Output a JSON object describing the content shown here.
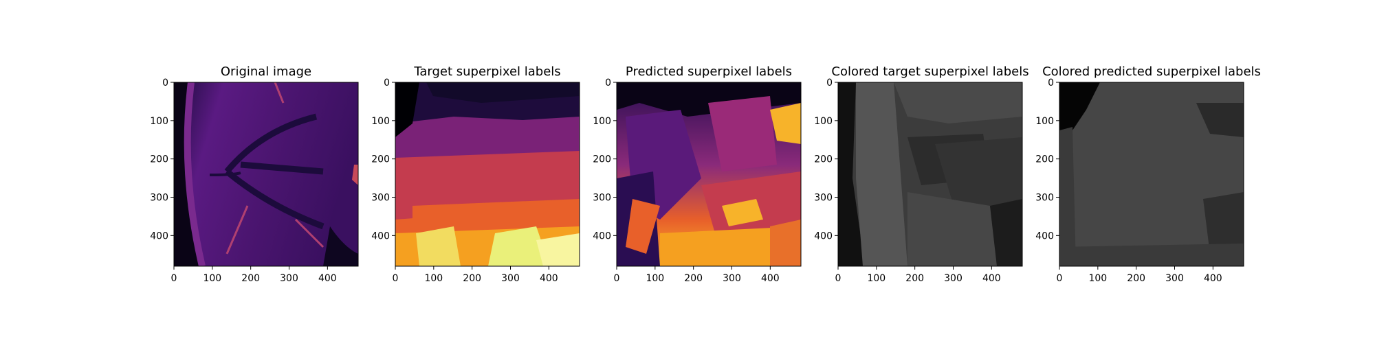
{
  "chart_data": [
    {
      "type": "heatmap",
      "title": "Original image",
      "colormap": "inferno",
      "xlim": [
        0,
        480
      ],
      "ylim": [
        480,
        0
      ],
      "xticks": [
        0,
        100,
        200,
        300,
        400
      ],
      "yticks": [
        0,
        100,
        200,
        300,
        400
      ],
      "xticklabels": [
        "0",
        "100",
        "200",
        "300",
        "400"
      ],
      "yticklabels": [
        "0",
        "100",
        "200",
        "300",
        "400"
      ]
    },
    {
      "type": "heatmap",
      "title": "Target superpixel labels",
      "colormap": "inferno",
      "xlim": [
        0,
        480
      ],
      "ylim": [
        480,
        0
      ],
      "xticks": [
        0,
        100,
        200,
        300,
        400
      ],
      "yticks": [
        0,
        100,
        200,
        300,
        400
      ],
      "xticklabels": [
        "0",
        "100",
        "200",
        "300",
        "400"
      ],
      "yticklabels": [
        "0",
        "100",
        "200",
        "300",
        "400"
      ]
    },
    {
      "type": "heatmap",
      "title": "Predicted superpixel labels",
      "colormap": "inferno",
      "xlim": [
        0,
        480
      ],
      "ylim": [
        480,
        0
      ],
      "xticks": [
        0,
        100,
        200,
        300,
        400
      ],
      "yticks": [
        0,
        100,
        200,
        300,
        400
      ],
      "xticklabels": [
        "0",
        "100",
        "200",
        "300",
        "400"
      ],
      "yticklabels": [
        "0",
        "100",
        "200",
        "300",
        "400"
      ]
    },
    {
      "type": "heatmap",
      "title": "Colored target superpixel labels",
      "colormap": "gray",
      "xlim": [
        0,
        480
      ],
      "ylim": [
        480,
        0
      ],
      "xticks": [
        0,
        100,
        200,
        300,
        400
      ],
      "yticks": [
        0,
        100,
        200,
        300,
        400
      ],
      "xticklabels": [
        "0",
        "100",
        "200",
        "300",
        "400"
      ],
      "yticklabels": [
        "0",
        "100",
        "200",
        "300",
        "400"
      ]
    },
    {
      "type": "heatmap",
      "title": "Colored predicted superpixel labels",
      "colormap": "gray",
      "xlim": [
        0,
        480
      ],
      "ylim": [
        480,
        0
      ],
      "xticks": [
        0,
        100,
        200,
        300,
        400
      ],
      "yticks": [
        0,
        100,
        200,
        300,
        400
      ],
      "xticklabels": [
        "0",
        "100",
        "200",
        "300",
        "400"
      ],
      "yticklabels": [
        "0",
        "100",
        "200",
        "300",
        "400"
      ]
    }
  ]
}
